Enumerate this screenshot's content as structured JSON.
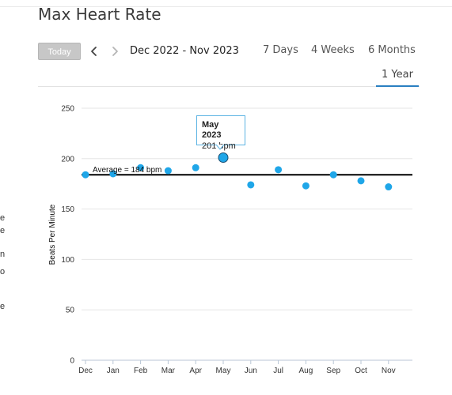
{
  "page": {
    "title": "Max Heart Rate"
  },
  "toolbar": {
    "today_label": "Today",
    "date_range": "Dec 2022 - Nov 2023",
    "prev_icon": "chevron-left-icon",
    "next_icon": "chevron-right-icon"
  },
  "range_tabs": [
    {
      "label": "7 Days",
      "selected": false
    },
    {
      "label": "4 Weeks",
      "selected": false
    },
    {
      "label": "6 Months",
      "selected": false
    },
    {
      "label": "1 Year",
      "selected": true
    }
  ],
  "left_fragments": [
    "e",
    "e",
    "n",
    "o",
    "e"
  ],
  "colors": {
    "accent": "#2a7fc1",
    "point": "#1fa6e8",
    "tooltip_border": "#5bb3e3",
    "average_line": "#000000",
    "grid": "#e6e6e6"
  },
  "tooltip": {
    "title": "May 2023",
    "value": "201 bpm"
  },
  "chart_data": {
    "type": "scatter",
    "ylabel": "Beats Per Minute",
    "xlabel": "",
    "categories": [
      "Dec",
      "Jan",
      "Feb",
      "Mar",
      "Apr",
      "May",
      "Jun",
      "Jul",
      "Aug",
      "Sep",
      "Oct",
      "Nov"
    ],
    "values": [
      184,
      185,
      191,
      188,
      191,
      201,
      174,
      189,
      173,
      184,
      178,
      172
    ],
    "highlighted_index": 5,
    "ylim": [
      0,
      250
    ],
    "yticks": [
      0,
      50,
      100,
      150,
      200,
      250
    ],
    "average": 184,
    "average_label": "Average = 184 bpm",
    "grid": true
  }
}
